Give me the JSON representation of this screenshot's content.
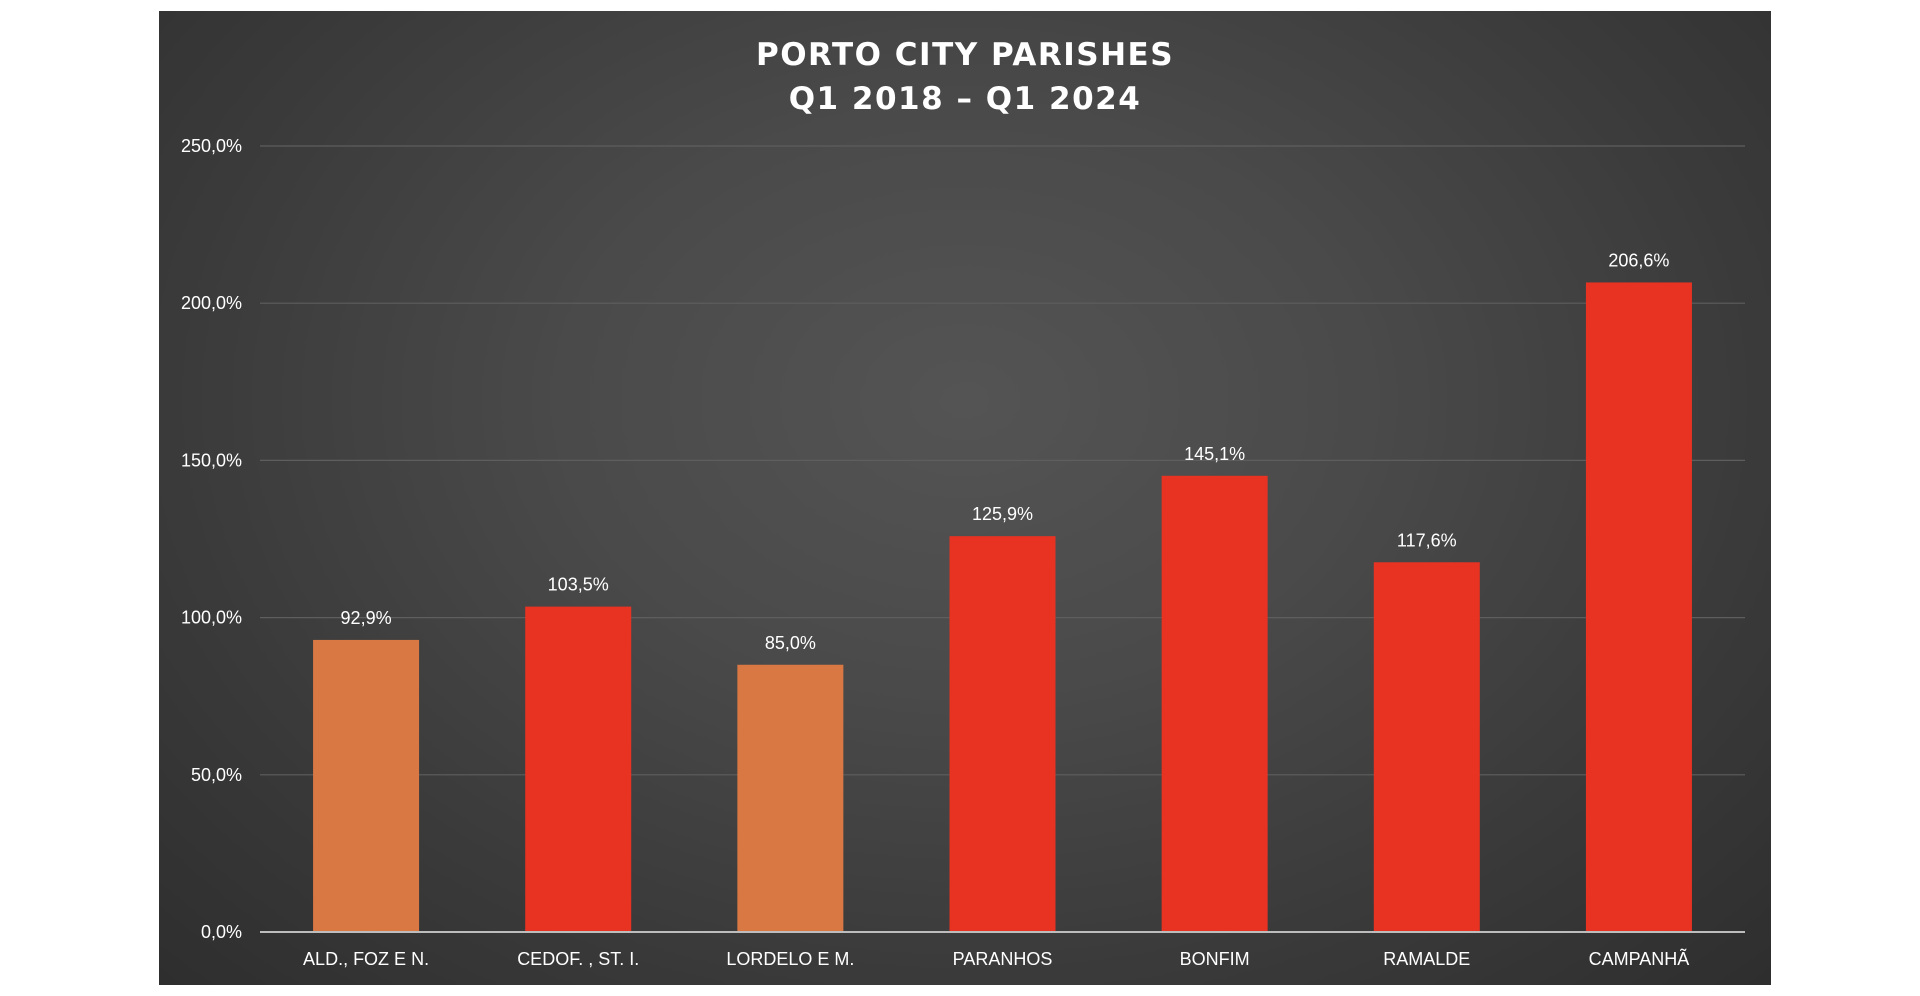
{
  "chart_data": {
    "type": "bar",
    "title": "PORTO CITY PARISHES",
    "subtitle": "Q1 2018 –  Q1 2024",
    "categories": [
      "ALD., FOZ E N.",
      "CEDOF. , ST. I.",
      "LORDELO E M.",
      "PARANHOS",
      "BONFIM",
      "RAMALDE",
      "CAMPANHÃ"
    ],
    "values": [
      92.9,
      103.5,
      85.0,
      125.9,
      145.1,
      117.6,
      206.6
    ],
    "value_labels": [
      "92,9%",
      "103,5%",
      "85,0%",
      "125,9%",
      "145,1%",
      "117,6%",
      "206,6%"
    ],
    "bar_colors": [
      "#D97843",
      "#E83323",
      "#D97843",
      "#E83323",
      "#E83323",
      "#E83323",
      "#E83323"
    ],
    "ylim": [
      0,
      250
    ],
    "yticks": [
      0,
      50,
      100,
      150,
      200,
      250
    ],
    "ytick_labels": [
      "0,0%",
      "50,0%",
      "100,0%",
      "150,0%",
      "200,0%",
      "250,0%"
    ],
    "xlabel": "",
    "ylabel": "",
    "grid": true,
    "legend": "none"
  }
}
